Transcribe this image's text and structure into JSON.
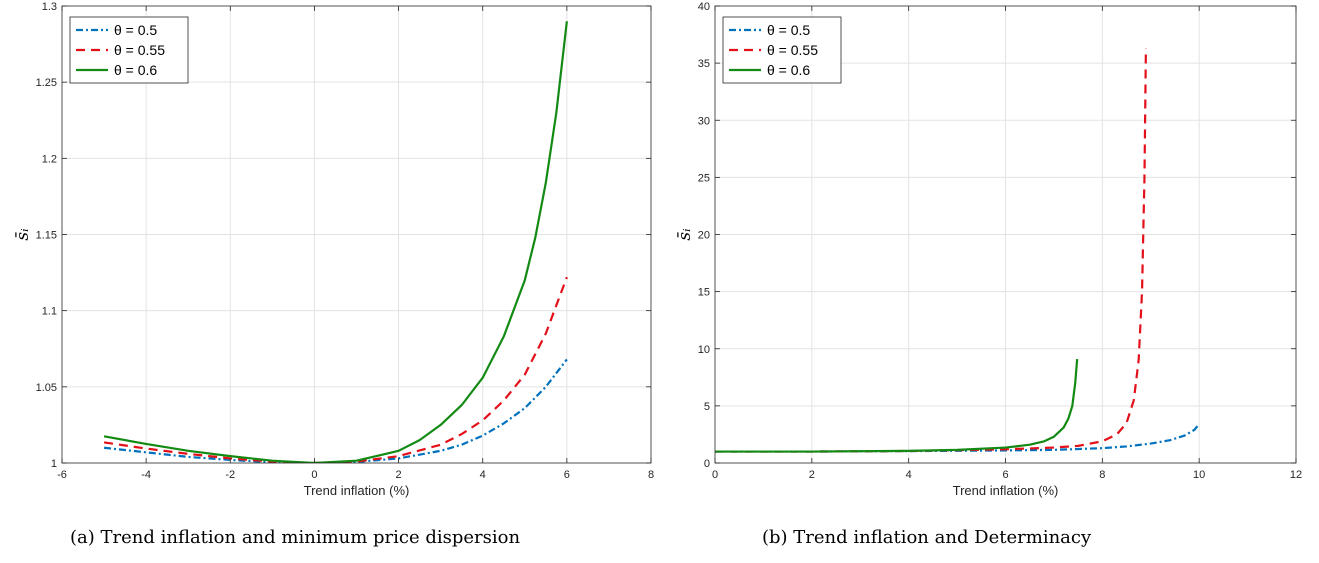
{
  "chart_data": [
    {
      "type": "line",
      "caption": "(a) Trend inflation and minimum price dispersion",
      "xlabel": "Trend inflation (%)",
      "ylabel": "s̄ᵢ",
      "xlim": [
        -6,
        8
      ],
      "ylim": [
        1,
        1.3
      ],
      "xticks": [
        -6,
        -4,
        -2,
        0,
        2,
        4,
        6,
        8
      ],
      "xtick_labels": [
        "-6",
        "-4",
        "-2",
        "0",
        "2",
        "4",
        "6",
        "8"
      ],
      "yticks": [
        1,
        1.05,
        1.1,
        1.15,
        1.2,
        1.25,
        1.3
      ],
      "ytick_labels": [
        "1",
        "1.05",
        "1.1",
        "1.15",
        "1.2",
        "1.25",
        "1.3"
      ],
      "grid": true,
      "legend_position": "top-left",
      "series": [
        {
          "name": "θ = 0.5",
          "color": "#0072BD",
          "style": "dashdot",
          "x": [
            -5,
            -4,
            -3,
            -2,
            -1,
            0,
            1,
            2,
            3,
            3.5,
            4,
            4.5,
            5,
            5.5,
            6
          ],
          "y": [
            1.01,
            1.007,
            1.004,
            1.002,
            1.0005,
            1.0,
            1.0007,
            1.003,
            1.008,
            1.012,
            1.018,
            1.026,
            1.036,
            1.05,
            1.068
          ]
        },
        {
          "name": "θ = 0.55",
          "color": "#E3101A",
          "style": "dashed",
          "x": [
            -5,
            -4,
            -3,
            -2,
            -1,
            0,
            1,
            2,
            3,
            3.5,
            4,
            4.5,
            5,
            5.5,
            6
          ],
          "y": [
            1.0135,
            1.0095,
            1.006,
            1.003,
            1.001,
            1.0,
            1.001,
            1.0045,
            1.012,
            1.019,
            1.028,
            1.041,
            1.058,
            1.085,
            1.122
          ]
        },
        {
          "name": "θ = 0.6",
          "color": "#138A13",
          "style": "solid",
          "x": [
            -5,
            -4,
            -3,
            -2,
            -1,
            0,
            1,
            2,
            2.5,
            3,
            3.5,
            4,
            4.5,
            5,
            5.25,
            5.5,
            5.75,
            6
          ],
          "y": [
            1.0175,
            1.0125,
            1.008,
            1.0045,
            1.0015,
            1.0,
            1.0015,
            1.008,
            1.015,
            1.025,
            1.038,
            1.056,
            1.083,
            1.12,
            1.148,
            1.184,
            1.23,
            1.29
          ]
        }
      ]
    },
    {
      "type": "line",
      "caption": "(b) Trend inflation and Determinacy",
      "xlabel": "Trend inflation (%)",
      "ylabel": "s̄ᵢ",
      "xlim": [
        0,
        12
      ],
      "ylim": [
        0,
        40
      ],
      "xticks": [
        0,
        2,
        4,
        6,
        8,
        10,
        12
      ],
      "xtick_labels": [
        "0",
        "2",
        "4",
        "6",
        "8",
        "10",
        "12"
      ],
      "yticks": [
        0,
        5,
        10,
        15,
        20,
        25,
        30,
        35,
        40
      ],
      "ytick_labels": [
        "0",
        "5",
        "10",
        "15",
        "20",
        "25",
        "30",
        "35",
        "40"
      ],
      "grid": true,
      "legend_position": "top-left",
      "series": [
        {
          "name": "θ = 0.5",
          "color": "#0072BD",
          "style": "dashdot",
          "x": [
            0,
            2,
            4,
            6,
            7,
            8,
            8.5,
            9,
            9.4,
            9.7,
            9.9,
            10
          ],
          "y": [
            1.0,
            1.0,
            1.04,
            1.1,
            1.15,
            1.3,
            1.45,
            1.7,
            2.0,
            2.4,
            2.9,
            3.4
          ]
        },
        {
          "name": "θ = 0.55",
          "color": "#E3101A",
          "style": "dashed",
          "x": [
            0,
            2,
            4,
            6,
            7,
            7.5,
            8,
            8.3,
            8.5,
            8.65,
            8.75,
            8.82,
            8.87,
            8.9
          ],
          "y": [
            1.0,
            1.0,
            1.05,
            1.2,
            1.35,
            1.5,
            1.9,
            2.5,
            3.5,
            5.5,
            9.0,
            15.0,
            25.0,
            36.3
          ]
        },
        {
          "name": "θ = 0.6",
          "color": "#138A13",
          "style": "solid",
          "x": [
            0,
            2,
            4,
            5,
            6,
            6.5,
            6.8,
            7,
            7.2,
            7.3,
            7.38,
            7.44,
            7.48
          ],
          "y": [
            1.0,
            1.0,
            1.06,
            1.15,
            1.35,
            1.6,
            1.9,
            2.3,
            3.1,
            3.9,
            5.0,
            7.0,
            9.1
          ]
        }
      ]
    }
  ]
}
